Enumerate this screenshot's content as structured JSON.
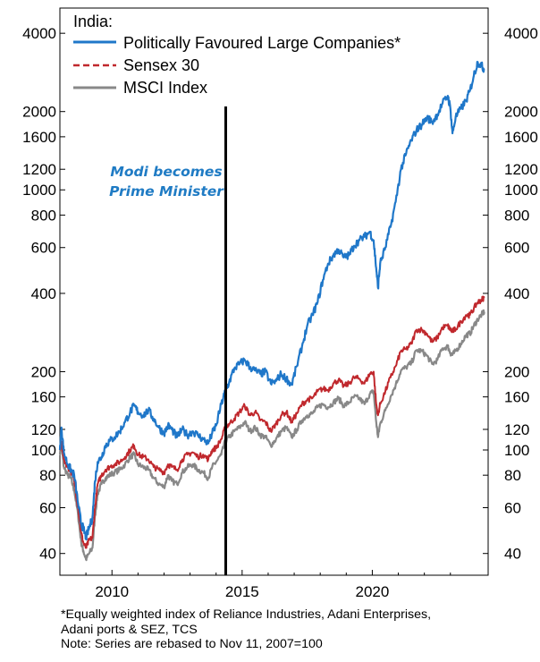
{
  "chart_data": {
    "type": "line",
    "title": "India:",
    "y_scale": "log",
    "ylim": [
      33,
      5000
    ],
    "xlim": [
      2008.0,
      2024.45
    ],
    "y_ticks": [
      40,
      60,
      80,
      100,
      120,
      160,
      200,
      400,
      600,
      800,
      1000,
      1200,
      1600,
      2000,
      4000
    ],
    "x_ticks": [
      2010,
      2015,
      2020
    ],
    "legend_position": "top-left",
    "series": [
      {
        "name": "Politically Favoured Large Companies*",
        "color": "#1f77c9",
        "points": [
          [
            2008.0,
            100
          ],
          [
            2008.06,
            122
          ],
          [
            2008.15,
            98
          ],
          [
            2008.3,
            88
          ],
          [
            2008.42,
            84
          ],
          [
            2008.55,
            80
          ],
          [
            2008.7,
            62
          ],
          [
            2008.82,
            52
          ],
          [
            2008.9,
            50
          ],
          [
            2009.0,
            46
          ],
          [
            2009.12,
            50
          ],
          [
            2009.25,
            55
          ],
          [
            2009.35,
            76
          ],
          [
            2009.45,
            90
          ],
          [
            2009.6,
            94
          ],
          [
            2009.75,
            104
          ],
          [
            2009.9,
            108
          ],
          [
            2010.1,
            112
          ],
          [
            2010.3,
            118
          ],
          [
            2010.5,
            128
          ],
          [
            2010.7,
            140
          ],
          [
            2010.85,
            148
          ],
          [
            2011.0,
            140
          ],
          [
            2011.2,
            136
          ],
          [
            2011.4,
            142
          ],
          [
            2011.6,
            132
          ],
          [
            2011.8,
            122
          ],
          [
            2012.0,
            116
          ],
          [
            2012.15,
            124
          ],
          [
            2012.3,
            120
          ],
          [
            2012.5,
            112
          ],
          [
            2012.7,
            120
          ],
          [
            2012.9,
            114
          ],
          [
            2013.1,
            118
          ],
          [
            2013.3,
            114
          ],
          [
            2013.5,
            110
          ],
          [
            2013.7,
            106
          ],
          [
            2013.85,
            116
          ],
          [
            2014.0,
            124
          ],
          [
            2014.2,
            150
          ],
          [
            2014.35,
            168
          ],
          [
            2014.5,
            182
          ],
          [
            2014.7,
            206
          ],
          [
            2014.9,
            214
          ],
          [
            2015.1,
            222
          ],
          [
            2015.3,
            208
          ],
          [
            2015.5,
            202
          ],
          [
            2015.7,
            196
          ],
          [
            2015.9,
            200
          ],
          [
            2016.1,
            180
          ],
          [
            2016.3,
            184
          ],
          [
            2016.5,
            196
          ],
          [
            2016.7,
            188
          ],
          [
            2016.9,
            178
          ],
          [
            2017.1,
            210
          ],
          [
            2017.3,
            250
          ],
          [
            2017.5,
            300
          ],
          [
            2017.7,
            330
          ],
          [
            2017.9,
            370
          ],
          [
            2018.1,
            450
          ],
          [
            2018.3,
            520
          ],
          [
            2018.5,
            560
          ],
          [
            2018.7,
            590
          ],
          [
            2018.9,
            550
          ],
          [
            2019.1,
            560
          ],
          [
            2019.3,
            610
          ],
          [
            2019.5,
            640
          ],
          [
            2019.7,
            660
          ],
          [
            2019.9,
            690
          ],
          [
            2020.05,
            640
          ],
          [
            2020.15,
            500
          ],
          [
            2020.22,
            420
          ],
          [
            2020.3,
            520
          ],
          [
            2020.5,
            600
          ],
          [
            2020.7,
            720
          ],
          [
            2020.9,
            900
          ],
          [
            2021.1,
            1200
          ],
          [
            2021.3,
            1380
          ],
          [
            2021.5,
            1550
          ],
          [
            2021.7,
            1700
          ],
          [
            2021.9,
            1780
          ],
          [
            2022.1,
            1900
          ],
          [
            2022.3,
            1820
          ],
          [
            2022.5,
            1950
          ],
          [
            2022.7,
            2150
          ],
          [
            2022.9,
            2300
          ],
          [
            2023.0,
            2050
          ],
          [
            2023.08,
            1650
          ],
          [
            2023.2,
            1900
          ],
          [
            2023.4,
            2050
          ],
          [
            2023.6,
            2200
          ],
          [
            2023.75,
            2400
          ],
          [
            2023.9,
            2750
          ],
          [
            2024.05,
            3100
          ],
          [
            2024.2,
            3000
          ],
          [
            2024.3,
            2900
          ]
        ]
      },
      {
        "name": "Sensex 30",
        "color": "#c0282d",
        "points": [
          [
            2008.0,
            100
          ],
          [
            2008.06,
            108
          ],
          [
            2008.15,
            92
          ],
          [
            2008.3,
            86
          ],
          [
            2008.42,
            83
          ],
          [
            2008.55,
            76
          ],
          [
            2008.7,
            60
          ],
          [
            2008.82,
            48
          ],
          [
            2008.9,
            44
          ],
          [
            2009.0,
            42
          ],
          [
            2009.12,
            45
          ],
          [
            2009.25,
            46
          ],
          [
            2009.35,
            60
          ],
          [
            2009.45,
            74
          ],
          [
            2009.6,
            80
          ],
          [
            2009.75,
            84
          ],
          [
            2009.9,
            86
          ],
          [
            2010.1,
            88
          ],
          [
            2010.3,
            90
          ],
          [
            2010.5,
            94
          ],
          [
            2010.7,
            100
          ],
          [
            2010.85,
            104
          ],
          [
            2011.0,
            96
          ],
          [
            2011.2,
            94
          ],
          [
            2011.4,
            92
          ],
          [
            2011.6,
            86
          ],
          [
            2011.8,
            84
          ],
          [
            2012.0,
            82
          ],
          [
            2012.15,
            88
          ],
          [
            2012.3,
            86
          ],
          [
            2012.5,
            84
          ],
          [
            2012.7,
            92
          ],
          [
            2012.9,
            96
          ],
          [
            2013.1,
            98
          ],
          [
            2013.3,
            94
          ],
          [
            2013.5,
            96
          ],
          [
            2013.7,
            92
          ],
          [
            2013.85,
            100
          ],
          [
            2014.0,
            102
          ],
          [
            2014.2,
            110
          ],
          [
            2014.35,
            122
          ],
          [
            2014.5,
            126
          ],
          [
            2014.7,
            132
          ],
          [
            2014.9,
            140
          ],
          [
            2015.1,
            148
          ],
          [
            2015.3,
            136
          ],
          [
            2015.5,
            140
          ],
          [
            2015.7,
            130
          ],
          [
            2015.9,
            128
          ],
          [
            2016.1,
            118
          ],
          [
            2016.3,
            126
          ],
          [
            2016.5,
            136
          ],
          [
            2016.7,
            140
          ],
          [
            2016.9,
            128
          ],
          [
            2017.1,
            138
          ],
          [
            2017.3,
            150
          ],
          [
            2017.5,
            156
          ],
          [
            2017.7,
            158
          ],
          [
            2017.9,
            168
          ],
          [
            2018.1,
            172
          ],
          [
            2018.3,
            170
          ],
          [
            2018.5,
            180
          ],
          [
            2018.7,
            186
          ],
          [
            2018.9,
            176
          ],
          [
            2019.1,
            180
          ],
          [
            2019.3,
            190
          ],
          [
            2019.5,
            188
          ],
          [
            2019.7,
            180
          ],
          [
            2019.9,
            196
          ],
          [
            2020.05,
            200
          ],
          [
            2020.15,
            150
          ],
          [
            2020.22,
            136
          ],
          [
            2020.3,
            150
          ],
          [
            2020.5,
            168
          ],
          [
            2020.7,
            190
          ],
          [
            2020.9,
            210
          ],
          [
            2021.1,
            240
          ],
          [
            2021.3,
            244
          ],
          [
            2021.5,
            256
          ],
          [
            2021.7,
            290
          ],
          [
            2021.9,
            290
          ],
          [
            2022.1,
            280
          ],
          [
            2022.3,
            260
          ],
          [
            2022.5,
            270
          ],
          [
            2022.7,
            296
          ],
          [
            2022.9,
            300
          ],
          [
            2023.0,
            290
          ],
          [
            2023.08,
            286
          ],
          [
            2023.2,
            292
          ],
          [
            2023.4,
            310
          ],
          [
            2023.6,
            330
          ],
          [
            2023.75,
            330
          ],
          [
            2023.9,
            350
          ],
          [
            2024.05,
            370
          ],
          [
            2024.2,
            378
          ],
          [
            2024.3,
            385
          ]
        ]
      },
      {
        "name": "MSCI Index",
        "color": "#888888",
        "points": [
          [
            2008.0,
            98
          ],
          [
            2008.06,
            104
          ],
          [
            2008.15,
            86
          ],
          [
            2008.3,
            80
          ],
          [
            2008.42,
            78
          ],
          [
            2008.55,
            70
          ],
          [
            2008.7,
            56
          ],
          [
            2008.82,
            44
          ],
          [
            2008.9,
            41
          ],
          [
            2009.0,
            38
          ],
          [
            2009.12,
            40
          ],
          [
            2009.25,
            42
          ],
          [
            2009.35,
            56
          ],
          [
            2009.45,
            68
          ],
          [
            2009.6,
            74
          ],
          [
            2009.75,
            78
          ],
          [
            2009.9,
            80
          ],
          [
            2010.1,
            82
          ],
          [
            2010.3,
            84
          ],
          [
            2010.5,
            88
          ],
          [
            2010.7,
            94
          ],
          [
            2010.85,
            96
          ],
          [
            2011.0,
            88
          ],
          [
            2011.2,
            86
          ],
          [
            2011.4,
            84
          ],
          [
            2011.6,
            78
          ],
          [
            2011.8,
            74
          ],
          [
            2012.0,
            72
          ],
          [
            2012.15,
            80
          ],
          [
            2012.3,
            76
          ],
          [
            2012.5,
            74
          ],
          [
            2012.7,
            82
          ],
          [
            2012.9,
            86
          ],
          [
            2013.1,
            88
          ],
          [
            2013.3,
            84
          ],
          [
            2013.5,
            82
          ],
          [
            2013.7,
            78
          ],
          [
            2013.85,
            86
          ],
          [
            2014.0,
            90
          ],
          [
            2014.2,
            96
          ],
          [
            2014.35,
            108
          ],
          [
            2014.5,
            112
          ],
          [
            2014.7,
            118
          ],
          [
            2014.9,
            122
          ],
          [
            2015.1,
            128
          ],
          [
            2015.3,
            118
          ],
          [
            2015.5,
            122
          ],
          [
            2015.7,
            114
          ],
          [
            2015.9,
            112
          ],
          [
            2016.1,
            104
          ],
          [
            2016.3,
            110
          ],
          [
            2016.5,
            118
          ],
          [
            2016.7,
            122
          ],
          [
            2016.9,
            112
          ],
          [
            2017.1,
            120
          ],
          [
            2017.3,
            130
          ],
          [
            2017.5,
            136
          ],
          [
            2017.7,
            138
          ],
          [
            2017.9,
            146
          ],
          [
            2018.1,
            150
          ],
          [
            2018.3,
            146
          ],
          [
            2018.5,
            152
          ],
          [
            2018.7,
            158
          ],
          [
            2018.9,
            148
          ],
          [
            2019.1,
            152
          ],
          [
            2019.3,
            160
          ],
          [
            2019.5,
            158
          ],
          [
            2019.7,
            150
          ],
          [
            2019.9,
            164
          ],
          [
            2020.05,
            168
          ],
          [
            2020.15,
            128
          ],
          [
            2020.22,
            112
          ],
          [
            2020.3,
            126
          ],
          [
            2020.5,
            142
          ],
          [
            2020.7,
            160
          ],
          [
            2020.9,
            178
          ],
          [
            2021.1,
            202
          ],
          [
            2021.3,
            208
          ],
          [
            2021.5,
            216
          ],
          [
            2021.7,
            242
          ],
          [
            2021.9,
            240
          ],
          [
            2022.1,
            230
          ],
          [
            2022.3,
            214
          ],
          [
            2022.5,
            222
          ],
          [
            2022.7,
            246
          ],
          [
            2022.9,
            250
          ],
          [
            2023.0,
            236
          ],
          [
            2023.08,
            232
          ],
          [
            2023.2,
            240
          ],
          [
            2023.4,
            256
          ],
          [
            2023.6,
            276
          ],
          [
            2023.75,
            280
          ],
          [
            2023.9,
            300
          ],
          [
            2024.05,
            318
          ],
          [
            2024.2,
            332
          ],
          [
            2024.3,
            340
          ]
        ]
      }
    ],
    "vertical_marker": {
      "x": 2014.37,
      "color": "#000000"
    },
    "annotation": {
      "lines": [
        "Modi becomes",
        "Prime Minister"
      ],
      "color": "#1f7bc4"
    }
  },
  "footnote": {
    "line1": "*Equally weighted index of Reliance Industries, Adani Enterprises,",
    "line2": "Adani ports & SEZ, TCS",
    "line3": "Note: Series are rebased to Nov 11, 2007=100"
  }
}
